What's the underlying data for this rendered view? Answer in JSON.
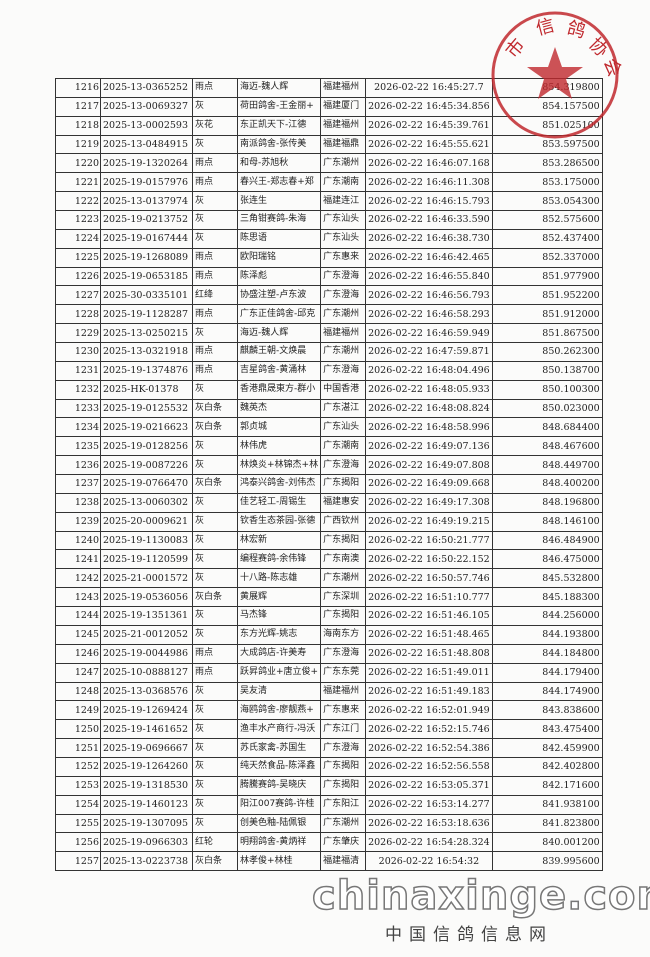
{
  "stamp": {
    "text": "市信鸽协会",
    "color": "#c0282d"
  },
  "watermark": {
    "domain": "chinaxinge.com",
    "site_name": "中国信鸽信息网"
  },
  "rows": [
    [
      "1216",
      "2025-13-0365252",
      "雨点",
      "海迈-魏人辉",
      "福建福州",
      "2026-02-22 16:45:27.7",
      "854.319800"
    ],
    [
      "1217",
      "2025-13-0069327",
      "灰",
      "荷田鸽舍-王金丽+",
      "福建厦门",
      "2026-02-22 16:45:34.856",
      "854.157500"
    ],
    [
      "1218",
      "2025-13-0002593",
      "灰花",
      "东正凯天下-江德",
      "福建福州",
      "2026-02-22 16:45:39.761",
      "851.025100"
    ],
    [
      "1219",
      "2025-13-0484915",
      "灰",
      "南派鸽舍-张传美",
      "福建福鼎",
      "2026-02-22 16:45:55.621",
      "853.597500"
    ],
    [
      "1220",
      "2025-19-1320264",
      "雨点",
      "和母-苏旭秋",
      "广东潮州",
      "2026-02-22 16:46:07.168",
      "853.286500"
    ],
    [
      "1221",
      "2025-19-0157976",
      "雨点",
      "春兴王-郑志春+郑",
      "广东潮南",
      "2026-02-22 16:46:11.308",
      "853.175000"
    ],
    [
      "1222",
      "2025-13-0137974",
      "灰",
      "张连生",
      "福建连江",
      "2026-02-22 16:46:15.793",
      "853.054300"
    ],
    [
      "1223",
      "2025-19-0213752",
      "灰",
      "三角钳赛鸽-朱海",
      "广东汕头",
      "2026-02-22 16:46:33.590",
      "852.575600"
    ],
    [
      "1224",
      "2025-19-0167444",
      "灰",
      "陈思语",
      "广东汕头",
      "2026-02-22 16:46:38.730",
      "852.437400"
    ],
    [
      "1225",
      "2025-19-1268089",
      "雨点",
      "欧阳瑞铭",
      "广东惠来",
      "2026-02-22 16:46:42.465",
      "852.337000"
    ],
    [
      "1226",
      "2025-19-0653185",
      "雨点",
      "陈泽彪",
      "广东澄海",
      "2026-02-22 16:46:55.840",
      "851.977900"
    ],
    [
      "1227",
      "2025-30-0335101",
      "红绛",
      "协盛注塑-卢东波",
      "广东澄海",
      "2026-02-22 16:46:56.793",
      "851.952200"
    ],
    [
      "1228",
      "2025-19-1128287",
      "雨点",
      "广东正佳鸽舍-邱克",
      "广东潮州",
      "2026-02-22 16:46:58.293",
      "851.912000"
    ],
    [
      "1229",
      "2025-13-0250215",
      "灰",
      "海迈-魏人辉",
      "福建福州",
      "2026-02-22 16:46:59.949",
      "851.867500"
    ],
    [
      "1230",
      "2025-13-0321918",
      "雨点",
      "麒麟王朝-文焕晨",
      "广东潮州",
      "2026-02-22 16:47:59.871",
      "850.262300"
    ],
    [
      "1231",
      "2025-19-1374876",
      "雨点",
      "吉星鸽舍-黄涌林",
      "广东澄海",
      "2026-02-22 16:48:04.496",
      "850.138700"
    ],
    [
      "1232",
      "2025-HK-01378",
      "灰",
      "香港鼎晟東方-群小",
      "中国香港",
      "2026-02-22 16:48:05.933",
      "850.100300"
    ],
    [
      "1233",
      "2025-19-0125532",
      "灰白条",
      "魏英杰",
      "广东湛江",
      "2026-02-22 16:48:08.824",
      "850.023000"
    ],
    [
      "1234",
      "2025-19-0216623",
      "灰白条",
      "郭贞城",
      "广东汕头",
      "2026-02-22 16:48:58.996",
      "848.684400"
    ],
    [
      "1235",
      "2025-19-0128256",
      "灰",
      "林伟虎",
      "广东潮南",
      "2026-02-22 16:49:07.136",
      "848.467600"
    ],
    [
      "1236",
      "2025-19-0087226",
      "灰",
      "林焕炎+林锦杰+林",
      "广东澄海",
      "2026-02-22 16:49:07.808",
      "848.449700"
    ],
    [
      "1237",
      "2025-19-0766470",
      "灰白条",
      "鸿泰兴鸽舍-刘伟杰",
      "广东揭阳",
      "2026-02-22 16:49:09.668",
      "848.400200"
    ],
    [
      "1238",
      "2025-13-0060302",
      "灰",
      "佳艺轻工-周锡生",
      "福建惠安",
      "2026-02-22 16:49:17.308",
      "848.196800"
    ],
    [
      "1239",
      "2025-20-0009621",
      "灰",
      "钦香生态茶园-张德",
      "广西钦州",
      "2026-02-22 16:49:19.215",
      "848.146100"
    ],
    [
      "1240",
      "2025-19-1130083",
      "灰",
      "林宏新",
      "广东揭阳",
      "2026-02-22 16:50:21.777",
      "846.484900"
    ],
    [
      "1241",
      "2025-19-1120599",
      "灰",
      "编程赛鸽-余伟锋",
      "广东南澳",
      "2026-02-22 16:50:22.152",
      "846.475000"
    ],
    [
      "1242",
      "2025-21-0001572",
      "灰",
      "十八路-陈志雄",
      "广东潮州",
      "2026-02-22 16:50:57.746",
      "845.532800"
    ],
    [
      "1243",
      "2025-19-0536056",
      "灰白条",
      "黄展辉",
      "广东深圳",
      "2026-02-22 16:51:10.777",
      "845.188300"
    ],
    [
      "1244",
      "2025-19-1351361",
      "灰",
      "马杰锋",
      "广东揭阳",
      "2026-02-22 16:51:46.105",
      "844.256000"
    ],
    [
      "1245",
      "2025-21-0012052",
      "灰",
      "东方光辉-姚志",
      "海南东方",
      "2026-02-22 16:51:48.465",
      "844.193800"
    ],
    [
      "1246",
      "2025-19-0044986",
      "雨点",
      "大成鸽店-许美寿",
      "广东澄海",
      "2026-02-22 16:51:48.808",
      "844.184800"
    ],
    [
      "1247",
      "2025-10-0888127",
      "雨点",
      "跃昇鸽业+唐立俊+",
      "广东东莞",
      "2026-02-22 16:51:49.011",
      "844.179400"
    ],
    [
      "1248",
      "2025-13-0368576",
      "灰",
      "吴友清",
      "福建福州",
      "2026-02-22 16:51:49.183",
      "844.174900"
    ],
    [
      "1249",
      "2025-19-1269424",
      "灰",
      "海鸥鸽舍-廖靓燕+",
      "广东惠来",
      "2026-02-22 16:52:01.949",
      "843.838600"
    ],
    [
      "1250",
      "2025-19-1461652",
      "灰",
      "渔丰水产商行-冯沃",
      "广东江门",
      "2026-02-22 16:52:15.746",
      "843.475400"
    ],
    [
      "1251",
      "2025-19-0696667",
      "灰",
      "苏氏家禽-苏国生",
      "广东澄海",
      "2026-02-22 16:52:54.386",
      "842.459900"
    ],
    [
      "1252",
      "2025-19-1264260",
      "灰",
      "纯天然食品-陈泽鑫",
      "广东揭阳",
      "2026-02-22 16:52:56.558",
      "842.402800"
    ],
    [
      "1253",
      "2025-19-1318530",
      "灰",
      "腾騰赛鸽-吴晓庆",
      "广东揭阳",
      "2026-02-22 16:53:05.371",
      "842.171600"
    ],
    [
      "1254",
      "2025-19-1460123",
      "灰",
      "阳江007赛鸽-许桂",
      "广东阳江",
      "2026-02-22 16:53:14.277",
      "841.938100"
    ],
    [
      "1255",
      "2025-19-1307095",
      "灰",
      "创美色釉-陆佩银",
      "广东潮州",
      "2026-02-22 16:53:18.636",
      "841.823800"
    ],
    [
      "1256",
      "2025-19-0966303",
      "红轮",
      "明翔鸽舍-黄炳祥",
      "广东肇庆",
      "2026-02-22 16:54:28.324",
      "840.001200"
    ],
    [
      "1257",
      "2025-13-0223738",
      "灰白条",
      "林孝俊+林桂",
      "福建福清",
      "2026-02-22 16:54:32",
      "839.995600"
    ]
  ]
}
